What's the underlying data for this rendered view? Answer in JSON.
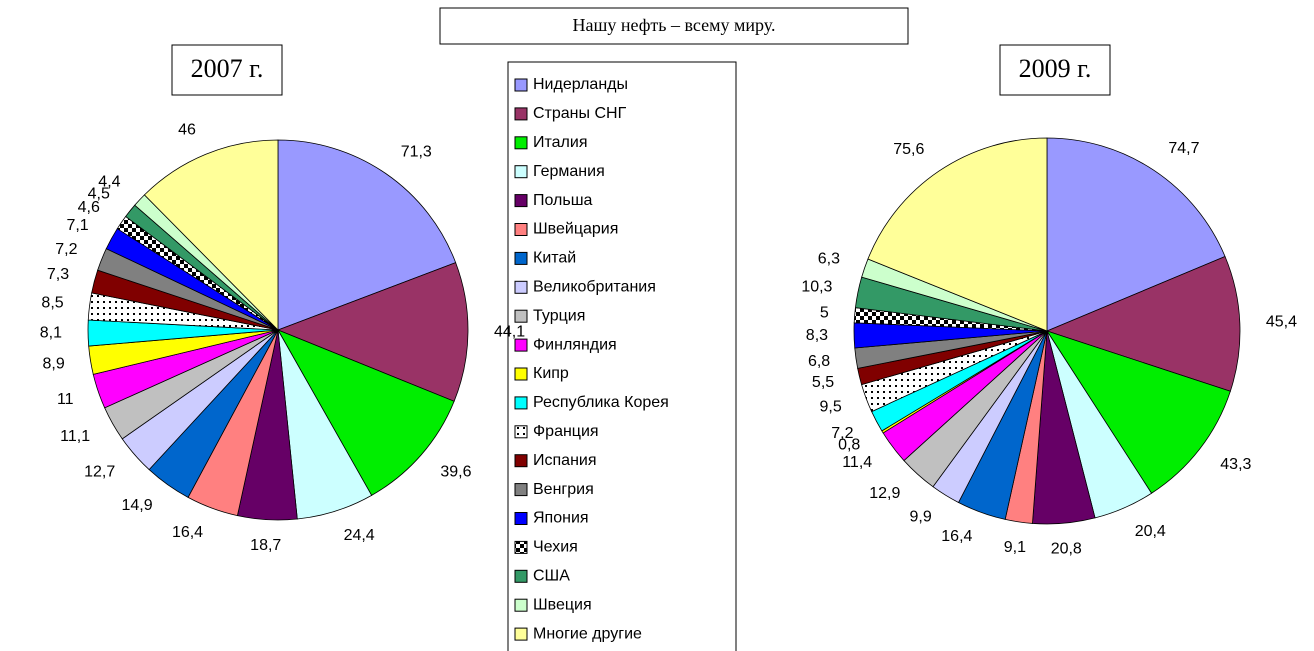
{
  "title": "Нашу нефть – всему миру.",
  "patterns": {
    "Франция": "dots",
    "Чехия": "checker"
  },
  "chart_data": [
    {
      "type": "pie",
      "title": "2007 г.",
      "categories": [
        "Нидерланды",
        "Страны СНГ",
        "Италия",
        "Германия",
        "Польша",
        "Швейцария",
        "Китай",
        "Великобритания",
        "Турция",
        "Финляндия",
        "Кипр",
        "Республика Корея",
        "Франция",
        "Испания",
        "Венгрия",
        "Япония",
        "Чехия",
        "США",
        "Швеция",
        "Многие другие"
      ],
      "values": [
        71.3,
        44.1,
        39.6,
        24.4,
        18.7,
        16.4,
        14.9,
        12.7,
        11.1,
        11,
        8.9,
        8.1,
        8.5,
        7.3,
        7.2,
        7.1,
        4.6,
        4.5,
        4.4,
        46
      ],
      "value_labels": [
        "71,3",
        "44,1",
        "39,6",
        "24,4",
        "18,7",
        "16,4",
        "14,9",
        "12,7",
        "11,1",
        "11",
        "8,9",
        "8,1",
        "8,5",
        "7,3",
        "7,2",
        "7,1",
        "4,6",
        "4,5",
        "4,4",
        "46"
      ],
      "colors": [
        "#9999ff",
        "#993366",
        "#00ee00",
        "#ccffff",
        "#660066",
        "#ff8080",
        "#0066cc",
        "#ccccff",
        "#c0c0c0",
        "#ff00ff",
        "#ffff00",
        "#00ffff",
        "#ffffff",
        "#800000",
        "#808080",
        "#0000ff",
        "#ffffff",
        "#339966",
        "#ccffcc",
        "#ffff99"
      ]
    },
    {
      "type": "pie",
      "title": "2009 г.",
      "categories": [
        "Нидерланды",
        "Страны СНГ",
        "Италия",
        "Германия",
        "Польша",
        "Швейцария",
        "Китай",
        "Великобритания",
        "Турция",
        "Финляндия",
        "Кипр",
        "Республика Корея",
        "Франция",
        "Испания",
        "Венгрия",
        "Япония",
        "Чехия",
        "США",
        "Швеция",
        "Многие другие"
      ],
      "values": [
        74.7,
        45.4,
        43.3,
        20.4,
        20.8,
        9.1,
        16.4,
        9.9,
        12.9,
        11.4,
        0.8,
        7.2,
        9.5,
        5.5,
        6.8,
        8.3,
        5,
        10.3,
        6.3,
        75.6
      ],
      "value_labels": [
        "74,7",
        "45,4",
        "43,3",
        "20,4",
        "20,8",
        "9,1",
        "16,4",
        "9,9",
        "12,9",
        "11,4",
        "0,8",
        "7,2",
        "9,5",
        "5,5",
        "6,8",
        "8,3",
        "5",
        "10,3",
        "6,3",
        "75,6"
      ],
      "colors": [
        "#9999ff",
        "#993366",
        "#00ee00",
        "#ccffff",
        "#660066",
        "#ff8080",
        "#0066cc",
        "#ccccff",
        "#c0c0c0",
        "#ff00ff",
        "#ffff00",
        "#00ffff",
        "#ffffff",
        "#800000",
        "#808080",
        "#0000ff",
        "#ffffff",
        "#339966",
        "#ccffcc",
        "#ffff99"
      ]
    }
  ]
}
